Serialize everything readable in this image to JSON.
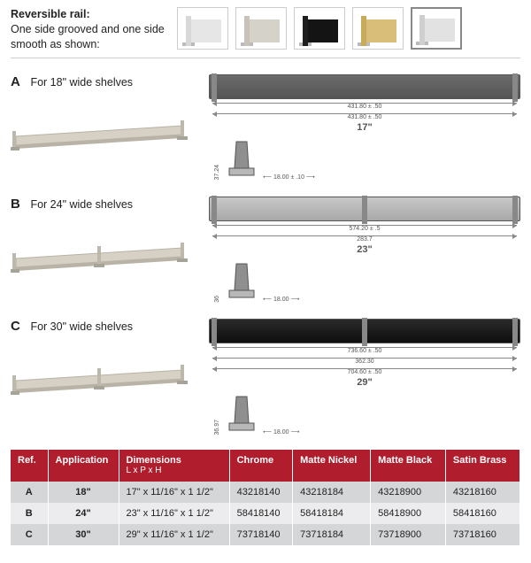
{
  "header": {
    "title": "Reversible rail:",
    "subtitle": "One side grooved and one side smooth as shown:"
  },
  "swatches": [
    {
      "name": "chrome",
      "post": "#d8d8d8",
      "panel": "#e6e6e6",
      "selected": false
    },
    {
      "name": "matte-nickel",
      "post": "#c7c3ba",
      "panel": "#d5d2c9",
      "selected": false
    },
    {
      "name": "matte-black",
      "post": "#1e1e1e",
      "panel": "#141414",
      "selected": false
    },
    {
      "name": "satin-brass",
      "post": "#c8aa5b",
      "panel": "#d8be78",
      "selected": false
    },
    {
      "name": "chrome-alt",
      "post": "#cfcfcf",
      "panel": "#e2e2e2",
      "selected": true
    }
  ],
  "variants": [
    {
      "ref": "A",
      "desc": "For 18\" wide shelves",
      "display_len": "17\"",
      "side_style": "dark",
      "mid_post": false,
      "dims_fine": [
        "431.80 ± .50",
        "431.80 ± .50"
      ],
      "cross_w": "18.00 ± .10",
      "cross_h": "37.24"
    },
    {
      "ref": "B",
      "desc": "For 24\" wide shelves",
      "display_len": "23\"",
      "side_style": "light",
      "mid_post": true,
      "dims_fine": [
        "574.20 ± .5",
        "283.7"
      ],
      "cross_w": "18.00",
      "cross_h": "36"
    },
    {
      "ref": "C",
      "desc": "For 30\" wide shelves",
      "display_len": "29\"",
      "side_style": "black",
      "mid_post": true,
      "dims_fine": [
        "736.60 ± .50",
        "362.30",
        "704.60 ± .50"
      ],
      "cross_w": "18.00",
      "cross_h": "36.97"
    }
  ],
  "table": {
    "headers": [
      {
        "label": "Ref."
      },
      {
        "label": "Application"
      },
      {
        "label": "Dimensions",
        "sub": "L x P x H"
      },
      {
        "label": "Chrome"
      },
      {
        "label": "Matte Nickel"
      },
      {
        "label": "Matte Black"
      },
      {
        "label": "Satin Brass"
      }
    ],
    "rows": [
      [
        "A",
        "18\"",
        "17\" x 11/16\" x 1 1/2\"",
        "43218140",
        "43218184",
        "43218900",
        "43218160"
      ],
      [
        "B",
        "24\"",
        "23\" x 11/16\" x 1 1/2\"",
        "58418140",
        "58418184",
        "58418900",
        "58418160"
      ],
      [
        "C",
        "30\"",
        "29\" x 11/16\" x 1 1/2\"",
        "73718140",
        "73718184",
        "73718900",
        "73718160"
      ]
    ]
  }
}
